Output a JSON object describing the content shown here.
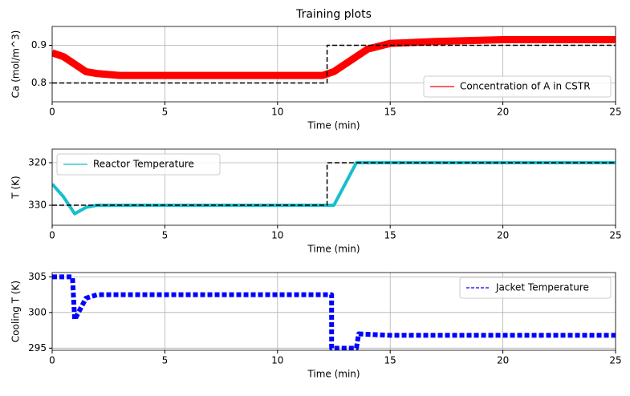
{
  "chart_data": [
    {
      "type": "line",
      "title": "Training plots",
      "xlabel": "Time (min)",
      "ylabel": "Ca (mol/m^3)",
      "xlim": [
        0,
        25
      ],
      "ylim": [
        0.75,
        0.95
      ],
      "xticks": [
        0,
        5,
        10,
        15,
        20,
        25
      ],
      "yticks": [
        0.8,
        0.9
      ],
      "grid": true,
      "legend": "lower right",
      "series": [
        {
          "name": "Concentration of A in CSTR",
          "color": "#ff0000",
          "line_width": 9,
          "x": [
            0,
            0.5,
            1,
            1.5,
            2,
            3,
            5,
            8,
            10,
            12,
            12.5,
            13,
            13.5,
            14,
            15,
            17,
            20,
            25
          ],
          "values": [
            0.88,
            0.87,
            0.85,
            0.83,
            0.825,
            0.82,
            0.82,
            0.82,
            0.82,
            0.82,
            0.83,
            0.85,
            0.87,
            0.89,
            0.905,
            0.91,
            0.915,
            0.915
          ]
        },
        {
          "color": "#000000",
          "dashed": true,
          "line_width": 1.5,
          "x": [
            0,
            12.2,
            12.2,
            25
          ],
          "values": [
            0.8,
            0.8,
            0.9,
            0.9
          ]
        }
      ]
    },
    {
      "type": "line",
      "xlabel": "Time (min)",
      "ylabel": "T (K)",
      "xlim": [
        0,
        25
      ],
      "ylim": [
        334.7,
        316.8
      ],
      "xticks": [
        0,
        5,
        10,
        15,
        20,
        25
      ],
      "yticks": [
        320,
        330
      ],
      "grid": true,
      "legend": "upper left",
      "series": [
        {
          "name": "Reactor Temperature",
          "color": "#17becf",
          "line_width": 4,
          "x": [
            0,
            0.5,
            1,
            1.5,
            2,
            3,
            5,
            8,
            10,
            12,
            12.5,
            13,
            13.5,
            14,
            15,
            17,
            20,
            25
          ],
          "values": [
            325,
            328,
            332,
            330.5,
            330,
            330,
            330,
            330,
            330,
            330,
            330,
            325,
            320,
            320,
            320,
            320,
            320,
            320
          ]
        },
        {
          "color": "#000000",
          "dashed": true,
          "line_width": 1.5,
          "x": [
            0,
            12.2,
            12.2,
            25
          ],
          "values": [
            330,
            330,
            320,
            320
          ]
        }
      ]
    },
    {
      "type": "line",
      "xlabel": "Time (min)",
      "ylabel": "Cooling T (K)",
      "xlim": [
        0,
        25
      ],
      "ylim": [
        294.7,
        305.6
      ],
      "xticks": [
        0,
        5,
        10,
        15,
        20,
        25
      ],
      "yticks": [
        295,
        300,
        305
      ],
      "grid": true,
      "legend": "upper right",
      "series": [
        {
          "name": "Jacket Temperature",
          "color": "#0000ff",
          "dashed": true,
          "line_width": 6,
          "x": [
            0,
            0.9,
            1.0,
            1.5,
            2,
            5,
            10,
            12.4,
            12.4,
            13.5,
            13.6,
            15,
            20,
            25
          ],
          "values": [
            305,
            305,
            299,
            302,
            302.5,
            302.5,
            302.5,
            302.5,
            295,
            295,
            297,
            296.8,
            296.8,
            296.8
          ]
        }
      ]
    }
  ]
}
